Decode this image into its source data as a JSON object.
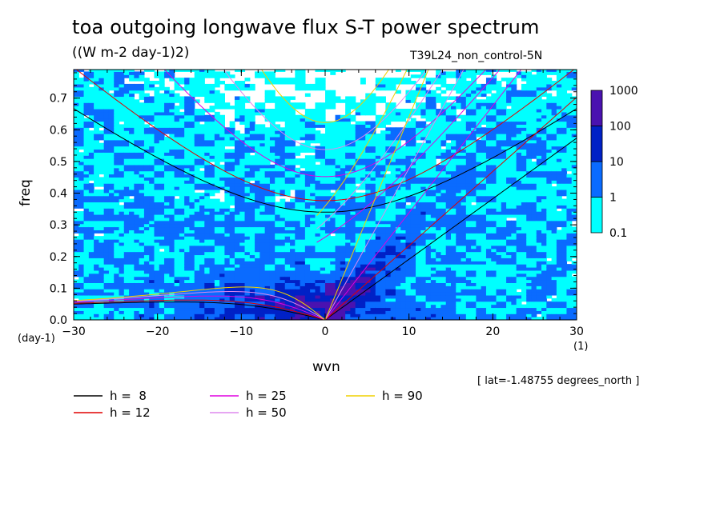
{
  "chart_data": {
    "type": "heatmap",
    "title": "toa outgoing longwave flux S-T power spectrum",
    "subtitle": "((W m-2 day-1)2)",
    "run_name": "T39L24_non_control-5N",
    "xlabel": "wvn",
    "x_unit": "(1)",
    "ylabel": "freq",
    "y_unit": "(day-1)",
    "note": "[ lat=-1.48755 degrees_north ]",
    "xlim": [
      -30,
      30
    ],
    "ylim": [
      0,
      0.79
    ],
    "x_ticks": [
      "-30",
      "-20",
      "-10",
      "0",
      "10",
      "20",
      "30"
    ],
    "y_ticks": [
      "0.0",
      "0.1",
      "0.2",
      "0.3",
      "0.4",
      "0.5",
      "0.6",
      "0.7"
    ],
    "colorbar": {
      "labels": [
        "1000",
        "100",
        "10",
        "1",
        "0.1"
      ],
      "levels": [
        0.1,
        1,
        10,
        100,
        1000
      ],
      "colors": [
        "#00ffff",
        "#0a6bff",
        "#0021c6",
        "#4a12b0"
      ]
    },
    "dispersion_curves": {
      "equivalent_depths_m": [
        8,
        12,
        25,
        50,
        90
      ],
      "legend": [
        {
          "label": "h =  8",
          "color": "#000000"
        },
        {
          "label": "h = 12",
          "color": "#e00000"
        },
        {
          "label": "h = 25",
          "color": "#e000e0"
        },
        {
          "label": "h = 50",
          "color": "#dd88ee"
        },
        {
          "label": "h = 90",
          "color": "#f0d000"
        }
      ]
    }
  }
}
